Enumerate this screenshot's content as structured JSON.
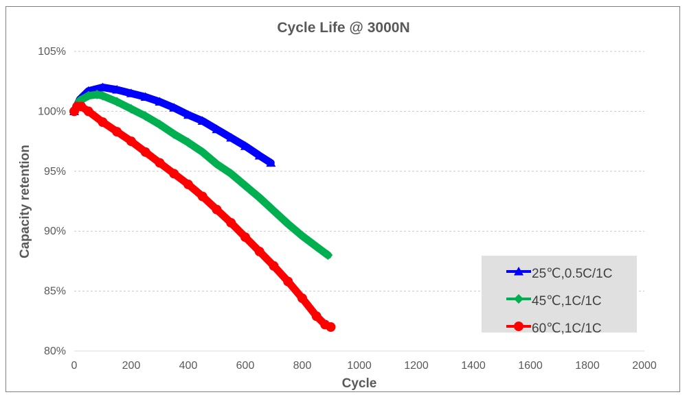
{
  "chart_data": {
    "type": "line",
    "title": "Cycle Life @ 3000N",
    "xlabel": "Cycle",
    "ylabel": "Capacity retention",
    "xlim": [
      0,
      2000
    ],
    "ylim": [
      80,
      105
    ],
    "x_ticks": [
      "0",
      "200",
      "400",
      "600",
      "800",
      "1000",
      "1200",
      "1400",
      "1600",
      "1800",
      "2000"
    ],
    "y_ticks": [
      "80%",
      "85%",
      "90%",
      "95%",
      "100%",
      "105%"
    ],
    "grid": "horizontal-dashed",
    "legend_position": "bottom-right",
    "series": [
      {
        "name": "25℃,0.5C/1C",
        "color": "#0000ff",
        "marker": "triangle",
        "x": [
          0,
          20,
          50,
          100,
          150,
          200,
          250,
          300,
          350,
          400,
          450,
          500,
          550,
          600,
          650,
          690
        ],
        "y": [
          100.0,
          101.0,
          101.7,
          102.0,
          101.8,
          101.5,
          101.2,
          100.8,
          100.3,
          99.7,
          99.2,
          98.5,
          97.8,
          97.1,
          96.3,
          95.7
        ]
      },
      {
        "name": "45℃,1C/1C",
        "color": "#00b050",
        "marker": "diamond",
        "x": [
          0,
          20,
          50,
          80,
          100,
          150,
          200,
          250,
          300,
          350,
          400,
          450,
          500,
          550,
          600,
          650,
          700,
          750,
          800,
          850,
          890
        ],
        "y": [
          100.0,
          100.9,
          101.3,
          101.4,
          101.3,
          100.8,
          100.2,
          99.6,
          98.9,
          98.1,
          97.4,
          96.6,
          95.6,
          94.8,
          93.8,
          92.8,
          91.7,
          90.6,
          89.6,
          88.7,
          88.0
        ]
      },
      {
        "name": "60℃,1C/1C",
        "color": "#ff0000",
        "marker": "circle",
        "x": [
          0,
          10,
          25,
          50,
          100,
          150,
          200,
          250,
          300,
          350,
          400,
          450,
          500,
          550,
          600,
          650,
          700,
          750,
          800,
          850,
          880,
          900
        ],
        "y": [
          100.0,
          100.4,
          100.4,
          100.0,
          99.1,
          98.3,
          97.5,
          96.6,
          95.7,
          94.8,
          93.9,
          92.9,
          91.8,
          90.7,
          89.5,
          88.3,
          87.1,
          85.8,
          84.4,
          82.9,
          82.2,
          82.0
        ]
      }
    ]
  }
}
